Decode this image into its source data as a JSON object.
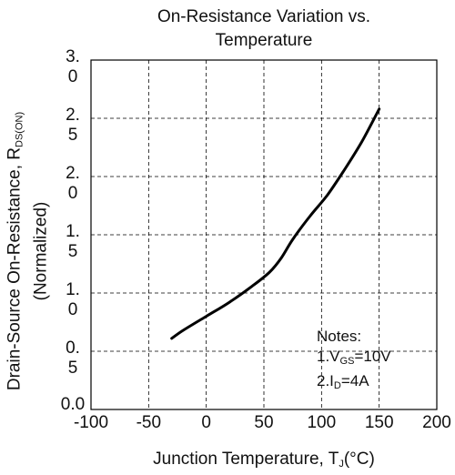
{
  "chart_data": {
    "type": "line",
    "title": "On-Resistance Variation vs.",
    "title_line2": "Temperature",
    "xlabel_main": "Junction Temperature, T",
    "xlabel_sub": "J",
    "xlabel_unit": "(°C)",
    "ylabel_main": "Drain-Source On-Resistance, R",
    "ylabel_sub": "DS(ON)",
    "ylabel_line2": "(Normalized)",
    "xlim": [
      -100,
      200
    ],
    "ylim": [
      0.0,
      3.0
    ],
    "grid": true,
    "x_ticks": [
      "-100",
      "-50",
      "0",
      "50",
      "100",
      "150",
      "200"
    ],
    "y_ticks": [
      {
        "line1": "3.",
        "line2": "0"
      },
      {
        "line1": "2.",
        "line2": "5"
      },
      {
        "line1": "2.",
        "line2": "0"
      },
      {
        "line1": "1.",
        "line2": "5"
      },
      {
        "line1": "1.",
        "line2": "0"
      },
      {
        "line1": "0.",
        "line2": "5"
      },
      {
        "line1": "0.0",
        "line2": ""
      }
    ],
    "series": [
      {
        "x": [
          -30,
          -20,
          0,
          20,
          40,
          55,
          65,
          75,
          90,
          105,
          120,
          135,
          150
        ],
        "y": [
          0.61,
          0.68,
          0.8,
          0.92,
          1.06,
          1.18,
          1.3,
          1.46,
          1.66,
          1.84,
          2.06,
          2.3,
          2.58
        ]
      }
    ],
    "notes": {
      "heading": "Notes:",
      "items": [
        {
          "prefix": "1.V",
          "sub": "GS",
          "suffix": "=10V"
        },
        {
          "prefix": "2.I",
          "sub": "D",
          "suffix": "=4A"
        }
      ]
    }
  }
}
